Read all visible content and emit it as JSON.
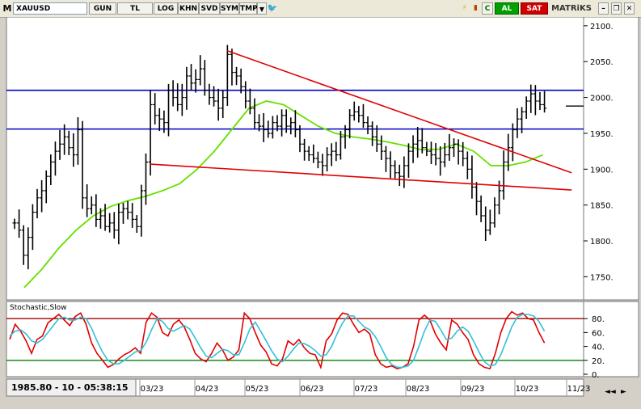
{
  "toolbar": {
    "menu_label": "M",
    "symbol": "XAUUSD",
    "buttons": [
      "GUN",
      "TL",
      "LOG",
      "KHN",
      "SVD",
      "SYM",
      "TMP"
    ],
    "al_label": "AL",
    "sat_label": "SAT",
    "c_label": "C",
    "brand": "MATRiKS"
  },
  "status": {
    "readout": "1985.80 - 10 - 05:38:15"
  },
  "chart_data": [
    {
      "type": "candlestick",
      "title": "",
      "symbol": "XAUUSD",
      "ylim": [
        1720,
        2110
      ],
      "y_ticks": [
        "2100.",
        "2050.",
        "2000.",
        "1950.",
        "1900.",
        "1850.",
        "1800.",
        "1750."
      ],
      "x_tick_labels": [
        "03/23",
        "04/23",
        "05/23",
        "06/23",
        "07/23",
        "08/23",
        "09/23",
        "10/23",
        "11/23"
      ],
      "series_closes_approx": [
        1825,
        1815,
        1780,
        1805,
        1840,
        1860,
        1870,
        1890,
        1910,
        1925,
        1935,
        1945,
        1930,
        1920,
        1955,
        1860,
        1845,
        1850,
        1830,
        1835,
        1820,
        1825,
        1815,
        1840,
        1845,
        1840,
        1830,
        1820,
        1870,
        1910,
        1990,
        1975,
        1970,
        1965,
        2010,
        2000,
        1990,
        2000,
        2030,
        2020,
        2025,
        2040,
        2010,
        2000,
        1995,
        1985,
        2000,
        2060,
        2035,
        2030,
        2015,
        1995,
        1985,
        1965,
        1960,
        1955,
        1950,
        1965,
        1960,
        1975,
        1960,
        1965,
        1955,
        1935,
        1925,
        1920,
        1915,
        1910,
        1905,
        1920,
        1925,
        1920,
        1945,
        1955,
        1975,
        1980,
        1975,
        1965,
        1960,
        1945,
        1935,
        1925,
        1915,
        1905,
        1895,
        1890,
        1905,
        1925,
        1935,
        1940,
        1930,
        1925,
        1920,
        1915,
        1910,
        1920,
        1930,
        1935,
        1925,
        1915,
        1900,
        1875,
        1855,
        1835,
        1815,
        1825,
        1850,
        1870,
        1910,
        1930,
        1955,
        1970,
        1980,
        1995,
        2005,
        1995,
        1990,
        1985
      ],
      "horizontal_lines": [
        2010,
        1956
      ],
      "trendlines": [
        {
          "from": [
            47,
            2065
          ],
          "to": [
            123,
            1895
          ]
        },
        {
          "from": [
            30,
            1907
          ],
          "to": [
            123,
            1871
          ]
        }
      ],
      "moving_average_approx": [
        1735,
        1760,
        1790,
        1815,
        1835,
        1848,
        1856,
        1862,
        1870,
        1880,
        1900,
        1925,
        1955,
        1985,
        1995,
        1990,
        1975,
        1960,
        1950,
        1945,
        1942,
        1938,
        1933,
        1927,
        1928,
        1935,
        1925,
        1905,
        1905,
        1910,
        1920
      ]
    },
    {
      "type": "line",
      "title": "Stochastic,Slow",
      "ylim": [
        0,
        100
      ],
      "y_ticks": [
        "80.",
        "60.",
        "40.",
        "20.",
        "0."
      ],
      "levels": [
        80,
        20
      ],
      "k_approx": [
        50,
        72,
        62,
        48,
        30,
        50,
        55,
        74,
        80,
        86,
        78,
        70,
        83,
        88,
        72,
        45,
        30,
        20,
        10,
        14,
        22,
        28,
        32,
        38,
        30,
        75,
        88,
        82,
        60,
        55,
        72,
        78,
        68,
        50,
        30,
        22,
        18,
        30,
        45,
        35,
        20,
        25,
        35,
        88,
        80,
        60,
        42,
        32,
        15,
        12,
        22,
        48,
        42,
        50,
        38,
        30,
        28,
        10,
        48,
        58,
        78,
        88,
        86,
        72,
        60,
        65,
        58,
        28,
        15,
        10,
        12,
        8,
        10,
        15,
        40,
        78,
        85,
        78,
        58,
        45,
        35,
        78,
        72,
        60,
        50,
        28,
        15,
        10,
        8,
        30,
        60,
        80,
        90,
        85,
        88,
        80,
        78,
        60,
        45
      ],
      "d_approx": [
        55,
        62,
        64,
        58,
        48,
        45,
        50,
        60,
        70,
        80,
        82,
        78,
        78,
        82,
        80,
        66,
        48,
        32,
        20,
        15,
        15,
        20,
        26,
        32,
        34,
        46,
        64,
        80,
        76,
        66,
        62,
        66,
        70,
        65,
        52,
        38,
        26,
        24,
        30,
        36,
        34,
        28,
        28,
        45,
        65,
        75,
        62,
        48,
        34,
        22,
        18,
        26,
        36,
        45,
        44,
        40,
        34,
        26,
        28,
        40,
        58,
        74,
        84,
        84,
        76,
        68,
        64,
        54,
        40,
        24,
        14,
        10,
        10,
        12,
        20,
        40,
        62,
        78,
        76,
        64,
        50,
        52,
        62,
        68,
        62,
        48,
        32,
        18,
        12,
        14,
        28,
        48,
        68,
        82,
        86,
        86,
        84,
        76,
        62
      ]
    }
  ]
}
